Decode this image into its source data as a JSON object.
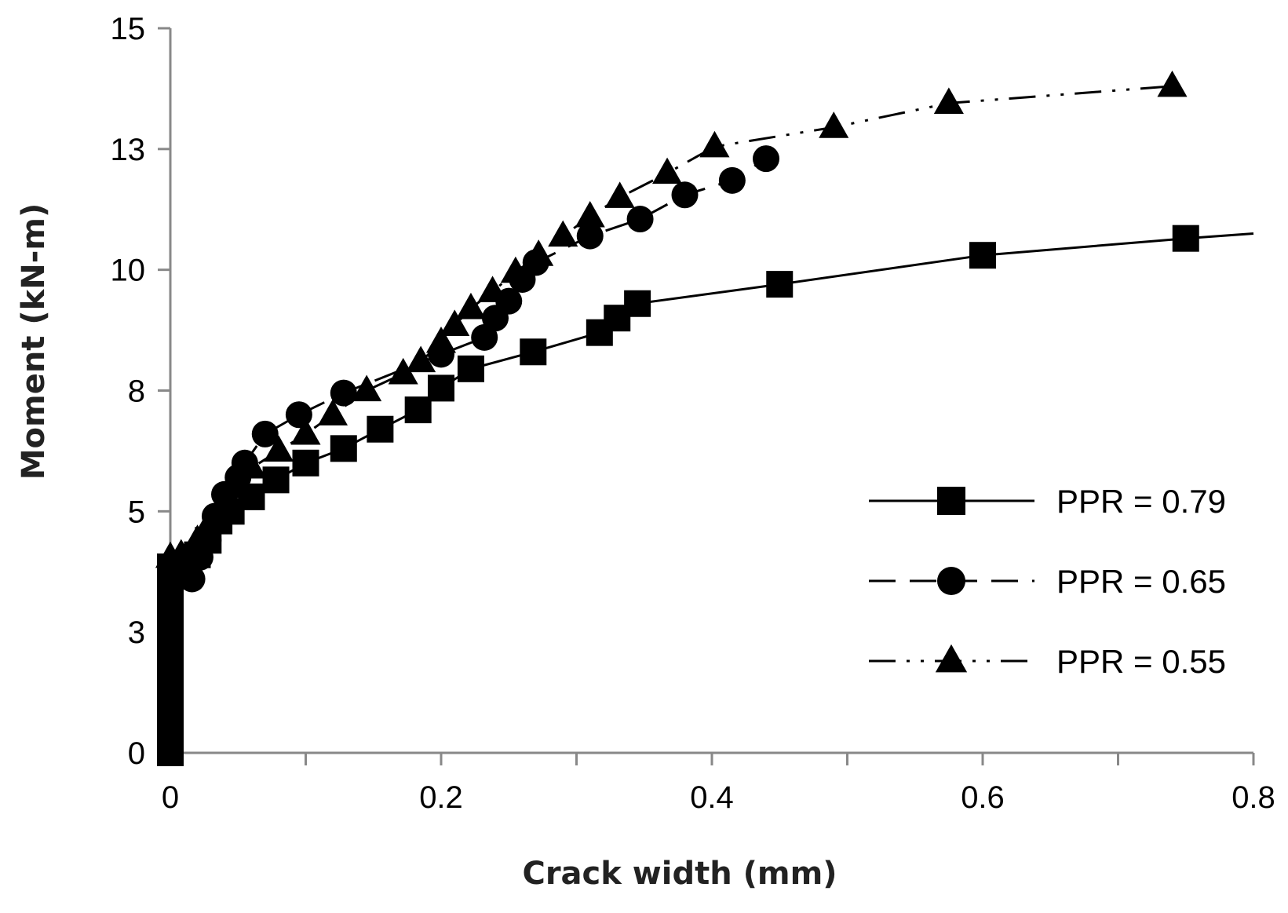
{
  "chart_data": {
    "type": "line",
    "xlabel": "Crack width (mm)",
    "ylabel": "Moment (kN-m)",
    "xlim": [
      0,
      0.8
    ],
    "ylim": [
      0,
      15
    ],
    "x_ticks": [
      "0",
      "0.2",
      "0.4",
      "0.6",
      "0.8"
    ],
    "y_ticks": [
      {
        "value": 0,
        "label": "0"
      },
      {
        "value": 2.5,
        "label": "3"
      },
      {
        "value": 5,
        "label": "5"
      },
      {
        "value": 7.5,
        "label": "8"
      },
      {
        "value": 10,
        "label": "10"
      },
      {
        "value": 12.5,
        "label": "13"
      },
      {
        "value": 15,
        "label": "15"
      }
    ],
    "grid": false,
    "legend_position": "bottom-right",
    "series": [
      {
        "name": "PPR = 0.79",
        "marker": "square",
        "dash": "solid",
        "points": [
          [
            0,
            0
          ],
          [
            0,
            0.4
          ],
          [
            0,
            0.8
          ],
          [
            0,
            1.2
          ],
          [
            0,
            1.6
          ],
          [
            0,
            2.0
          ],
          [
            0,
            2.4
          ],
          [
            0,
            2.8
          ],
          [
            0,
            3.2
          ],
          [
            0,
            3.6
          ],
          [
            0,
            3.85
          ],
          [
            0.012,
            3.9
          ],
          [
            0.02,
            4.1
          ],
          [
            0.028,
            4.4
          ],
          [
            0.036,
            4.8
          ],
          [
            0.045,
            5.0
          ],
          [
            0.06,
            5.3
          ],
          [
            0.078,
            5.65
          ],
          [
            0.1,
            6.0
          ],
          [
            0.128,
            6.3
          ],
          [
            0.155,
            6.7
          ],
          [
            0.183,
            7.1
          ],
          [
            0.2,
            7.55
          ],
          [
            0.222,
            7.95
          ],
          [
            0.268,
            8.3
          ],
          [
            0.317,
            8.7
          ],
          [
            0.33,
            9.0
          ],
          [
            0.345,
            9.3
          ],
          [
            0.45,
            9.7
          ],
          [
            0.6,
            10.3
          ],
          [
            0.75,
            10.65
          ],
          [
            0.8,
            10.75
          ]
        ]
      },
      {
        "name": "PPR = 0.65",
        "marker": "circle",
        "dash": "dash",
        "points": [
          [
            0,
            3.0
          ],
          [
            0,
            3.3
          ],
          [
            0.016,
            3.6
          ],
          [
            0.022,
            4.05
          ],
          [
            0.028,
            4.4
          ],
          [
            0.033,
            4.9
          ],
          [
            0.04,
            5.35
          ],
          [
            0.05,
            5.7
          ],
          [
            0.055,
            6.0
          ],
          [
            0.07,
            6.6
          ],
          [
            0.095,
            7.0
          ],
          [
            0.128,
            7.45
          ],
          [
            0.2,
            8.25
          ],
          [
            0.232,
            8.6
          ],
          [
            0.24,
            9.0
          ],
          [
            0.25,
            9.35
          ],
          [
            0.26,
            9.8
          ],
          [
            0.27,
            10.15
          ],
          [
            0.31,
            10.7
          ],
          [
            0.347,
            11.05
          ],
          [
            0.38,
            11.55
          ],
          [
            0.415,
            11.85
          ],
          [
            0.44,
            12.3
          ]
        ]
      },
      {
        "name": "PPR = 0.55",
        "marker": "triangle",
        "dash": "dashdotdot",
        "points": [
          [
            0,
            4.05
          ],
          [
            0.008,
            4.1
          ],
          [
            0.02,
            4.4
          ],
          [
            0.03,
            4.8
          ],
          [
            0.04,
            5.1
          ],
          [
            0.05,
            5.5
          ],
          [
            0.06,
            5.9
          ],
          [
            0.08,
            6.25
          ],
          [
            0.1,
            6.6
          ],
          [
            0.12,
            7.0
          ],
          [
            0.145,
            7.5
          ],
          [
            0.172,
            7.85
          ],
          [
            0.185,
            8.1
          ],
          [
            0.2,
            8.5
          ],
          [
            0.21,
            8.85
          ],
          [
            0.222,
            9.2
          ],
          [
            0.238,
            9.55
          ],
          [
            0.255,
            9.95
          ],
          [
            0.272,
            10.3
          ],
          [
            0.29,
            10.7
          ],
          [
            0.31,
            11.1
          ],
          [
            0.332,
            11.5
          ],
          [
            0.367,
            12.0
          ],
          [
            0.402,
            12.55
          ],
          [
            0.49,
            12.95
          ],
          [
            0.575,
            13.45
          ],
          [
            0.74,
            13.8
          ]
        ]
      }
    ]
  }
}
